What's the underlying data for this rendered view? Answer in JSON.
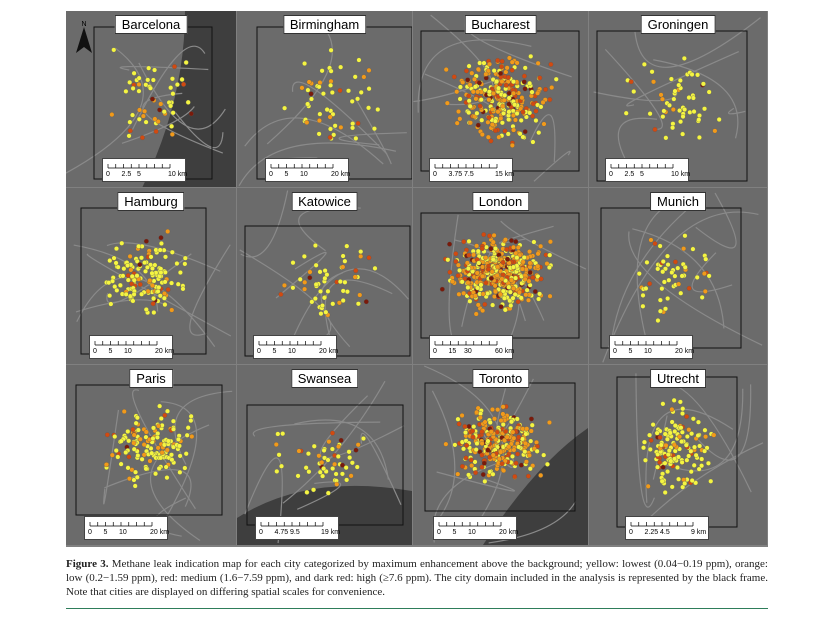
{
  "north_arrow": {
    "label": "N"
  },
  "panels": [
    {
      "city": "Barcelona",
      "scale": [
        "0",
        "2.5",
        "5",
        "10 km"
      ],
      "scale_fracs": [
        0,
        0.25,
        0.5,
        1
      ],
      "ticks": 8,
      "density": "low"
    },
    {
      "city": "Birmingham",
      "scale": [
        "0",
        "5",
        "10",
        "20 km"
      ],
      "scale_fracs": [
        0,
        0.25,
        0.5,
        1
      ],
      "ticks": 8,
      "density": "low"
    },
    {
      "city": "Bucharest",
      "scale": [
        "0",
        "3.75",
        "7.5",
        "15 km"
      ],
      "scale_fracs": [
        0,
        0.25,
        0.5,
        1
      ],
      "ticks": 8,
      "density": "high"
    },
    {
      "city": "Groningen",
      "scale": [
        "0",
        "2.5",
        "5",
        "10 km"
      ],
      "scale_fracs": [
        0,
        0.25,
        0.5,
        1
      ],
      "ticks": 8,
      "density": "low"
    },
    {
      "city": "Hamburg",
      "scale": [
        "0",
        "5",
        "10",
        "20 km"
      ],
      "scale_fracs": [
        0,
        0.25,
        0.5,
        1
      ],
      "ticks": 8,
      "density": "mid"
    },
    {
      "city": "Katowice",
      "scale": [
        "0",
        "5",
        "10",
        "20 km"
      ],
      "scale_fracs": [
        0,
        0.25,
        0.5,
        1
      ],
      "ticks": 8,
      "density": "low"
    },
    {
      "city": "London",
      "scale": [
        "0",
        "15",
        "30",
        "60 km"
      ],
      "scale_fracs": [
        0,
        0.25,
        0.5,
        1
      ],
      "ticks": 8,
      "density": "veryhigh"
    },
    {
      "city": "Munich",
      "scale": [
        "0",
        "5",
        "10",
        "20 km"
      ],
      "scale_fracs": [
        0,
        0.25,
        0.5,
        1
      ],
      "ticks": 8,
      "density": "low"
    },
    {
      "city": "Paris",
      "scale": [
        "0",
        "5",
        "10",
        "20 km"
      ],
      "scale_fracs": [
        0,
        0.25,
        0.5,
        1
      ],
      "ticks": 8,
      "density": "mid"
    },
    {
      "city": "Swansea",
      "scale": [
        "0",
        "4.75",
        "9.5",
        "19 km"
      ],
      "scale_fracs": [
        0,
        0.25,
        0.5,
        1
      ],
      "ticks": 8,
      "density": "low"
    },
    {
      "city": "Toronto",
      "scale": [
        "0",
        "5",
        "10",
        "20 km"
      ],
      "scale_fracs": [
        0,
        0.25,
        0.5,
        1
      ],
      "ticks": 8,
      "density": "high"
    },
    {
      "city": "Utrecht",
      "scale": [
        "0",
        "2.25",
        "4.5",
        "9 km"
      ],
      "scale_fracs": [
        0,
        0.25,
        0.5,
        1
      ],
      "ticks": 8,
      "density": "mid"
    }
  ],
  "colors": {
    "yellow": "#f5f542",
    "orange": "#f29a1a",
    "red": "#d24a10",
    "darkred": "#7a1a0a",
    "map_bg": "#6b6b6b",
    "road": "#8a8a8a",
    "water": "#3e3e3e"
  },
  "caption": {
    "label": "Figure 3.",
    "text": " Methane leak indication map for each city categorized by maximum enhancement above the background; yellow: lowest (0.04−0.19 ppm), orange: low (0.2−1.59 ppm), red: medium (1.6−7.59 ppm), and dark red: high (≥7.6 ppm). The city domain included in the analysis is represented by the black frame. Note that cities are displayed on differing spatial scales for convenience."
  }
}
